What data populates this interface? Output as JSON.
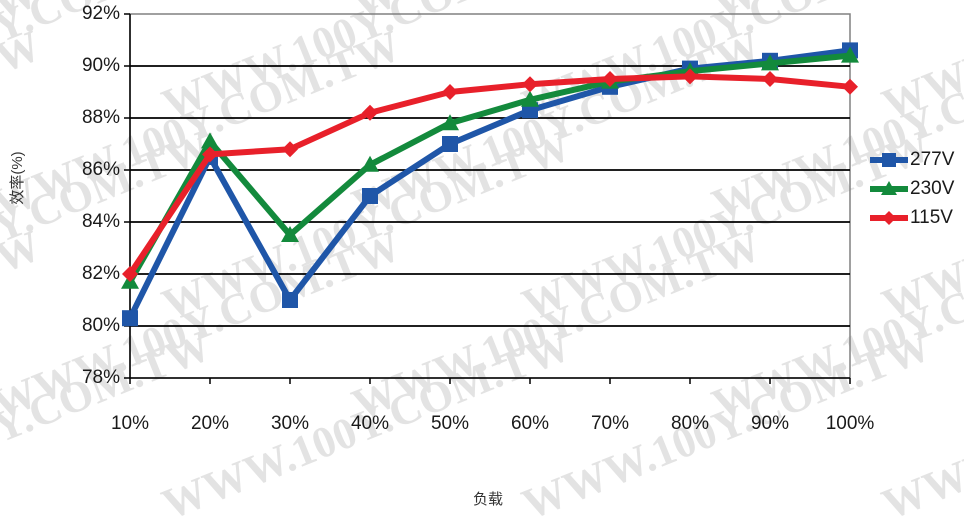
{
  "chart_data": {
    "type": "line",
    "title": "",
    "xlabel": "负载",
    "ylabel": "效率(%)",
    "categories": [
      "10%",
      "20%",
      "30%",
      "40%",
      "50%",
      "60%",
      "70%",
      "80%",
      "90%",
      "100%"
    ],
    "y_ticks": [
      "78%",
      "80%",
      "82%",
      "84%",
      "86%",
      "88%",
      "90%",
      "92%"
    ],
    "ylim": [
      78,
      92
    ],
    "grid": true,
    "legend_position": "right",
    "series": [
      {
        "name": "277V",
        "color": "#1f56a8",
        "marker": "square",
        "values": [
          80.3,
          86.5,
          81.0,
          85.0,
          87.0,
          88.3,
          89.2,
          89.9,
          90.2,
          90.6
        ]
      },
      {
        "name": "230V",
        "color": "#138a3c",
        "marker": "triangle",
        "values": [
          81.7,
          87.1,
          83.5,
          86.2,
          87.8,
          88.7,
          89.4,
          89.8,
          90.1,
          90.4
        ]
      },
      {
        "name": "115V",
        "color": "#e8202a",
        "marker": "diamond",
        "values": [
          82.0,
          86.6,
          86.8,
          88.2,
          89.0,
          89.3,
          89.5,
          89.6,
          89.5,
          89.2
        ]
      }
    ]
  },
  "watermark": {
    "text": "WWW.100Y.COM.TW"
  }
}
